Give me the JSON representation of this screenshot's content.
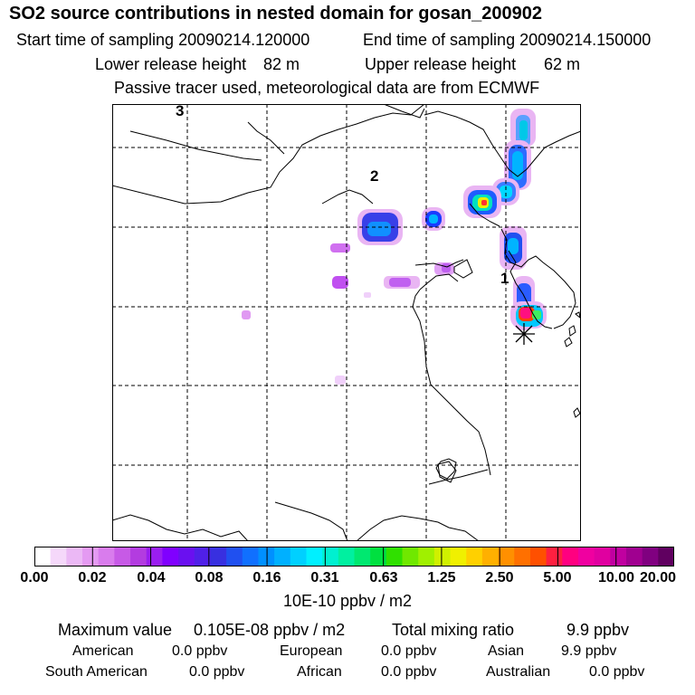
{
  "header": {
    "title": "SO2 source contributions in nested domain for gosan_200902",
    "start_label": "Start time of sampling 20090214.120000",
    "end_label": "End time of sampling 20090214.150000",
    "lower_label": "Lower release height",
    "lower_value": "82 m",
    "upper_label": "Upper release height",
    "upper_value": "62 m",
    "note": "Passive tracer used, meteorological data are from ECMWF"
  },
  "map": {
    "markers": [
      "3",
      "2",
      "1"
    ],
    "receptor_symbol": "asterisk",
    "colors": {
      "frame": "#000000",
      "grid": "#000000",
      "coast": "#000000"
    }
  },
  "colorbar": {
    "ticks": [
      "0.00",
      "0.02",
      "0.04",
      "0.08",
      "0.16",
      "0.31",
      "0.63",
      "1.25",
      "2.50",
      "5.00",
      "10.00",
      "20.00"
    ],
    "colors": [
      "#ffffff",
      "#f5d8fa",
      "#ebb8f5",
      "#e49af2",
      "#d97ced",
      "#c75ae6",
      "#b33ce0",
      "#9a1ef0",
      "#8000ff",
      "#6a10f0",
      "#5020e8",
      "#3830e0",
      "#2050f0",
      "#1070ff",
      "#0090ff",
      "#00b0ff",
      "#00d0ff",
      "#00f0ff",
      "#00f0d0",
      "#00f0a0",
      "#00e870",
      "#00e040",
      "#30e000",
      "#70e800",
      "#a0f000",
      "#d0f000",
      "#f0f000",
      "#ffd000",
      "#ffb000",
      "#ff9000",
      "#ff7000",
      "#ff5000",
      "#ff2040",
      "#ff0080",
      "#f000a0",
      "#e000a0",
      "#c000a0",
      "#a00090",
      "#800080",
      "#600060"
    ],
    "units": "10E-10 ppbv / m2"
  },
  "stats": {
    "max_label": "Maximum value",
    "max_value": "0.105E-08 ppbv / m2",
    "total_label": "Total mixing ratio",
    "total_value": "9.9 ppbv",
    "regions": [
      {
        "name": "American",
        "value": "0.0 ppbv"
      },
      {
        "name": "European",
        "value": "0.0 ppbv"
      },
      {
        "name": "Asian",
        "value": "9.9 ppbv"
      },
      {
        "name": "South American",
        "value": "0.0 ppbv"
      },
      {
        "name": "African",
        "value": "0.0 ppbv"
      },
      {
        "name": "Australian",
        "value": "0.0 ppbv"
      }
    ]
  }
}
